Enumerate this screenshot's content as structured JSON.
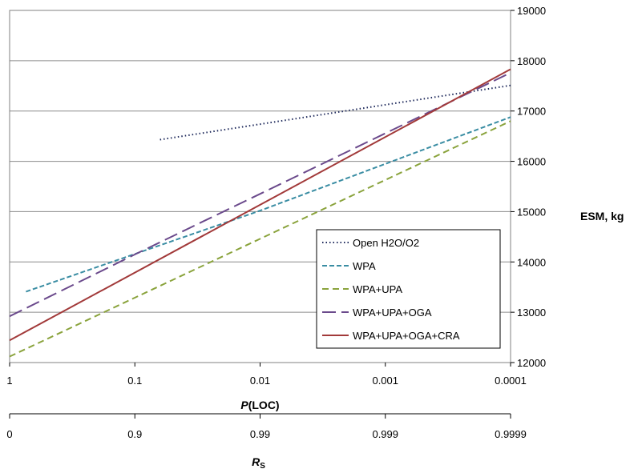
{
  "chart_data": {
    "type": "line",
    "x_scale": "log-reversed",
    "xlim": [
      1,
      0.0001
    ],
    "ylim": [
      12000,
      19000
    ],
    "grid": true,
    "legend_position": "bottom-right",
    "x_ticks": [
      "1",
      "0.1",
      "0.01",
      "0.001",
      "0.0001"
    ],
    "y_ticks": [
      "12000",
      "13000",
      "14000",
      "15000",
      "16000",
      "17000",
      "18000",
      "19000"
    ],
    "xlabel_italic": "P",
    "xlabel_rest": "(LOC)",
    "ylabel": "ESM, kg",
    "secondary_x_ticks": [
      "0",
      "0.9",
      "0.99",
      "0.999",
      "0.9999"
    ],
    "secondary_xlabel": "R",
    "secondary_xlabel_sub": "S",
    "series": [
      {
        "name": "Open H2O/O2",
        "color": "#1f2a5c",
        "dash": "dotted",
        "x": [
          0.063,
          0.0001
        ],
        "y": [
          16430,
          17510
        ]
      },
      {
        "name": "WPA",
        "color": "#3a8da3",
        "dash": "short-dash",
        "x": [
          0.74,
          0.01,
          0.0001
        ],
        "y": [
          13410,
          15020,
          16880
        ]
      },
      {
        "name": "WPA+UPA",
        "color": "#8aa33c",
        "dash": "dash",
        "x": [
          1,
          0.0001
        ],
        "y": [
          12120,
          16800
        ]
      },
      {
        "name": "WPA+UPA+OGA",
        "color": "#6b4a8c",
        "dash": "long-dash",
        "x": [
          1,
          0.1,
          0.0001
        ],
        "y": [
          12920,
          14150,
          17760
        ]
      },
      {
        "name": "WPA+UPA+OGA+CRA",
        "color": "#a23a3a",
        "dash": "solid",
        "x": [
          1,
          0.0001
        ],
        "y": [
          12440,
          17830
        ]
      }
    ]
  }
}
